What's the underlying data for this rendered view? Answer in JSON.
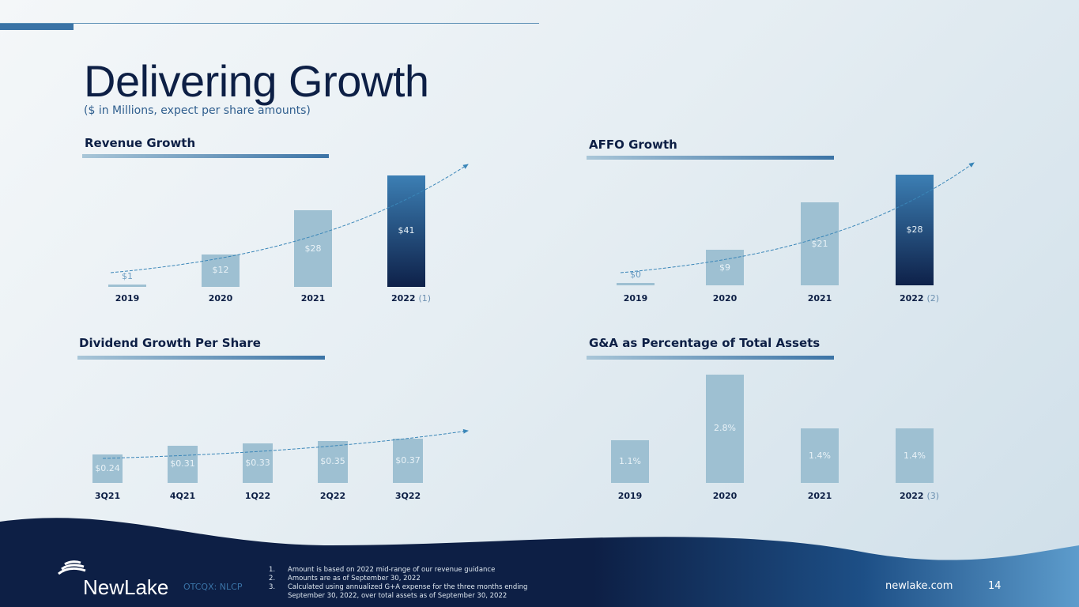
{
  "title": "Delivering Growth",
  "subtitle": "($ in Millions, expect per share amounts)",
  "footer": {
    "logo": "NewLake",
    "ticker": "OTCQX: NLCP",
    "website": "newlake.com",
    "page": "14",
    "notes": [
      {
        "n": "1.",
        "text": "Amount is based on 2022 mid-range of our revenue guidance"
      },
      {
        "n": "2.",
        "text": "Amounts are as of September 30, 2022"
      },
      {
        "n": "3.",
        "text": "Calculated using annualized G+A expense for the three months ending"
      },
      {
        "n": "",
        "text": "September 30, 2022, over total assets as of September 30, 2022"
      }
    ]
  },
  "colors": {
    "bar": "#9ec0d2",
    "highlight_top": "#3c7fb4",
    "highlight_bottom": "#0e2149",
    "navy": "#0d1f45"
  },
  "chart_data": [
    {
      "type": "bar",
      "title": "Revenue Growth",
      "categories": [
        "2019",
        "2020",
        "2021",
        "2022"
      ],
      "notes": [
        "",
        "",
        "",
        "(1)"
      ],
      "values": [
        1,
        12,
        28,
        41
      ],
      "labels": [
        "$1",
        "$12",
        "$28",
        "$41"
      ],
      "highlight": [
        false,
        false,
        false,
        true
      ]
    },
    {
      "type": "bar",
      "title": "AFFO Growth",
      "categories": [
        "2019",
        "2020",
        "2021",
        "2022"
      ],
      "notes": [
        "",
        "",
        "",
        "(2)"
      ],
      "values": [
        0,
        9,
        21,
        28
      ],
      "labels": [
        "$0",
        "$9",
        "$21",
        "$28"
      ],
      "highlight": [
        false,
        false,
        false,
        true
      ]
    },
    {
      "type": "bar",
      "title": "Dividend Growth Per Share",
      "categories": [
        "3Q21",
        "4Q21",
        "1Q22",
        "2Q22",
        "3Q22"
      ],
      "notes": [
        "",
        "",
        "",
        "",
        ""
      ],
      "values": [
        0.24,
        0.31,
        0.33,
        0.35,
        0.37
      ],
      "labels": [
        "$0.24",
        "$0.31",
        "$0.33",
        "$0.35",
        "$0.37"
      ],
      "highlight": [
        false,
        false,
        false,
        false,
        false
      ]
    },
    {
      "type": "bar",
      "title": "G&A as Percentage of Total Assets",
      "categories": [
        "2019",
        "2020",
        "2021",
        "2022"
      ],
      "notes": [
        "",
        "",
        "",
        "(3)"
      ],
      "values": [
        1.1,
        2.8,
        1.4,
        1.4
      ],
      "labels": [
        "1.1%",
        "2.8%",
        "1.4%",
        "1.4%"
      ],
      "highlight": [
        false,
        false,
        false,
        false
      ]
    }
  ]
}
